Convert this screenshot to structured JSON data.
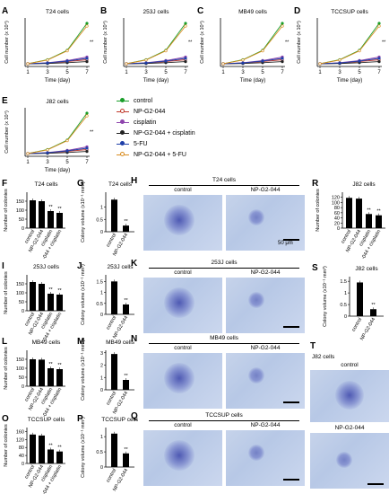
{
  "growth_panels": [
    {
      "letter": "A",
      "title": "T24 cells"
    },
    {
      "letter": "B",
      "title": "253J cells"
    },
    {
      "letter": "C",
      "title": "MB49 cells"
    },
    {
      "letter": "D",
      "title": "TCCSUP cells"
    },
    {
      "letter": "E",
      "title": "J82 cells"
    }
  ],
  "growth_axes": {
    "ylabel": "Cell number (x 10⁴)",
    "xlabel": "Time (day)",
    "xticks": [
      "1",
      "3",
      "5",
      "7"
    ]
  },
  "legend": [
    "control",
    "NP-G2-044",
    "cisplatin",
    "NP-G2-044 + cisplatin",
    "5-FU",
    "NP-G2-044 + 5-FU"
  ],
  "legend_colors": [
    "#1a9e2a",
    "#c0392b",
    "#8e44ad",
    "#222222",
    "#1f3fa8",
    "#d98c1f"
  ],
  "colony_number_panels": [
    {
      "letter": "F",
      "title": "T24 cells"
    },
    {
      "letter": "I",
      "title": "253J cells"
    },
    {
      "letter": "L",
      "title": "MB49 cells"
    },
    {
      "letter": "O",
      "title": "TCCSUP cells"
    },
    {
      "letter": "R",
      "title": "J82 cells"
    }
  ],
  "colony_number_ylabel": "Number of colonies",
  "colony_number_xlabels": [
    "control",
    "NP-G2-044",
    "cisplatin",
    "NP-G2-044 + cisplatin"
  ],
  "colony_volume_panels": [
    {
      "letter": "G",
      "title": "T24 cells"
    },
    {
      "letter": "J",
      "title": "253J cells"
    },
    {
      "letter": "M",
      "title": "MB49 cells"
    },
    {
      "letter": "P",
      "title": "TCCSUP cells"
    },
    {
      "letter": "S",
      "title": "J82 cells"
    }
  ],
  "colony_volume_ylabel": "Colony volume (x10⁻¹ mm³)",
  "colony_volume_xlabels": [
    "control",
    "NP-G2-044"
  ],
  "image_panels": [
    {
      "letter": "H",
      "title": "T24 cells",
      "left": "control",
      "right": "NP-G2-044",
      "scale": "50 μm"
    },
    {
      "letter": "K",
      "title": "253J cells",
      "left": "control",
      "right": "NP-G2-044"
    },
    {
      "letter": "N",
      "title": "MB49 cells",
      "left": "control",
      "right": "NP-G2-044"
    },
    {
      "letter": "Q",
      "title": "TCCSUP cells",
      "left": "control",
      "right": "NP-G2-044"
    }
  ],
  "image_T": {
    "letter": "T",
    "title": "J82 cells",
    "top": "control",
    "bottom": "NP-G2-044"
  },
  "significance": "**",
  "chart_data": [
    {
      "type": "line",
      "panel": "A",
      "title": "T24 cells",
      "xlabel": "Time (day)",
      "ylabel": "Cell number (x 10⁴)",
      "x": [
        1,
        3,
        5,
        7
      ],
      "series": [
        {
          "name": "control",
          "values": [
            10,
            25,
            60,
            160
          ]
        },
        {
          "name": "NP-G2-044",
          "values": [
            10,
            12,
            18,
            25
          ]
        },
        {
          "name": "cisplatin",
          "values": [
            10,
            14,
            22,
            35
          ]
        },
        {
          "name": "NP-G2-044 + cisplatin",
          "values": [
            10,
            11,
            14,
            18
          ]
        },
        {
          "name": "5-FU",
          "values": [
            10,
            13,
            20,
            30
          ]
        },
        {
          "name": "NP-G2-044 + 5-FU",
          "values": [
            10,
            24,
            58,
            150
          ]
        }
      ]
    },
    {
      "type": "line",
      "panel": "B",
      "title": "253J cells",
      "xlabel": "Time (day)",
      "ylabel": "Cell number (x 10⁴)",
      "x": [
        1,
        3,
        5,
        7
      ],
      "series": [
        {
          "name": "control",
          "values": [
            10,
            25,
            60,
            160
          ]
        },
        {
          "name": "NP-G2-044",
          "values": [
            10,
            12,
            18,
            25
          ]
        },
        {
          "name": "cisplatin",
          "values": [
            10,
            14,
            22,
            35
          ]
        },
        {
          "name": "NP-G2-044 + cisplatin",
          "values": [
            10,
            11,
            14,
            18
          ]
        },
        {
          "name": "5-FU",
          "values": [
            10,
            13,
            20,
            30
          ]
        },
        {
          "name": "NP-G2-044 + 5-FU",
          "values": [
            10,
            24,
            58,
            150
          ]
        }
      ]
    },
    {
      "type": "line",
      "panel": "C",
      "title": "MB49 cells",
      "xlabel": "Time (day)",
      "ylabel": "Cell number (x 10⁴)",
      "x": [
        1,
        3,
        5,
        7
      ],
      "series": [
        {
          "name": "control",
          "values": [
            10,
            25,
            60,
            160
          ]
        },
        {
          "name": "NP-G2-044",
          "values": [
            10,
            12,
            18,
            25
          ]
        },
        {
          "name": "cisplatin",
          "values": [
            10,
            14,
            22,
            35
          ]
        },
        {
          "name": "NP-G2-044 + cisplatin",
          "values": [
            10,
            11,
            14,
            18
          ]
        },
        {
          "name": "5-FU",
          "values": [
            10,
            13,
            20,
            30
          ]
        },
        {
          "name": "NP-G2-044 + 5-FU",
          "values": [
            10,
            24,
            58,
            150
          ]
        }
      ]
    },
    {
      "type": "line",
      "panel": "D",
      "title": "TCCSUP cells",
      "xlabel": "Time (day)",
      "ylabel": "Cell number (x 10⁴)",
      "x": [
        1,
        3,
        5,
        7
      ],
      "series": [
        {
          "name": "control",
          "values": [
            10,
            25,
            60,
            160
          ]
        },
        {
          "name": "NP-G2-044",
          "values": [
            10,
            12,
            18,
            25
          ]
        },
        {
          "name": "cisplatin",
          "values": [
            10,
            14,
            22,
            35
          ]
        },
        {
          "name": "NP-G2-044 + cisplatin",
          "values": [
            10,
            11,
            14,
            18
          ]
        },
        {
          "name": "5-FU",
          "values": [
            10,
            13,
            20,
            30
          ]
        },
        {
          "name": "NP-G2-044 + 5-FU",
          "values": [
            10,
            24,
            58,
            150
          ]
        }
      ]
    },
    {
      "type": "line",
      "panel": "E",
      "title": "J82 cells",
      "xlabel": "Time (day)",
      "ylabel": "Cell number (x 10⁴)",
      "x": [
        1,
        3,
        5,
        7
      ],
      "series": [
        {
          "name": "control",
          "values": [
            10,
            25,
            60,
            160
          ]
        },
        {
          "name": "NP-G2-044",
          "values": [
            10,
            12,
            18,
            25
          ]
        },
        {
          "name": "cisplatin",
          "values": [
            10,
            14,
            22,
            35
          ]
        },
        {
          "name": "NP-G2-044 + cisplatin",
          "values": [
            10,
            11,
            14,
            18
          ]
        },
        {
          "name": "5-FU",
          "values": [
            10,
            13,
            20,
            30
          ]
        },
        {
          "name": "NP-G2-044 + 5-FU",
          "values": [
            10,
            24,
            58,
            150
          ]
        }
      ]
    },
    {
      "type": "bar",
      "panel": "F",
      "title": "T24 cells",
      "ylabel": "Number of colonies",
      "categories": [
        "control",
        "NP-G2-044",
        "cisplatin",
        "NP-G2-044 + cisplatin"
      ],
      "values": [
        155,
        150,
        95,
        85
      ],
      "ylim": [
        0,
        200
      ],
      "yticks": [
        0,
        50,
        100,
        150
      ]
    },
    {
      "type": "bar",
      "panel": "I",
      "title": "253J cells",
      "ylabel": "Number of colonies",
      "categories": [
        "control",
        "NP-G2-044",
        "cisplatin",
        "NP-G2-044 + cisplatin"
      ],
      "values": [
        160,
        150,
        95,
        90
      ],
      "ylim": [
        0,
        200
      ],
      "yticks": [
        0,
        50,
        100,
        150
      ]
    },
    {
      "type": "bar",
      "panel": "L",
      "title": "MB49 cells",
      "ylabel": "Number of colonies",
      "categories": [
        "control",
        "NP-G2-044",
        "cisplatin",
        "NP-G2-044 + cisplatin"
      ],
      "values": [
        150,
        148,
        100,
        95
      ],
      "ylim": [
        0,
        200
      ],
      "yticks": [
        0,
        50,
        100,
        150
      ]
    },
    {
      "type": "bar",
      "panel": "O",
      "title": "TCCSUP cells",
      "ylabel": "Number of colonies",
      "categories": [
        "control",
        "NP-G2-044",
        "cisplatin",
        "NP-G2-044 + cisplatin"
      ],
      "values": [
        145,
        140,
        70,
        60
      ],
      "ylim": [
        0,
        180
      ],
      "yticks": [
        0,
        40,
        80,
        120,
        160
      ]
    },
    {
      "type": "bar",
      "panel": "R",
      "title": "J82 cells",
      "ylabel": "Number of colonies",
      "categories": [
        "control",
        "NP-G2-044",
        "cisplatin",
        "NP-G2-044 + cisplatin"
      ],
      "values": [
        118,
        115,
        55,
        50
      ],
      "ylim": [
        0,
        140
      ],
      "yticks": [
        0,
        20,
        40,
        60,
        80,
        100,
        120
      ]
    },
    {
      "type": "bar",
      "panel": "G",
      "title": "T24 cells",
      "ylabel": "Colony volume (x10⁻¹ mm³)",
      "categories": [
        "control",
        "NP-G2-044"
      ],
      "values": [
        1.3,
        0.25
      ],
      "ylim": [
        0,
        1.6
      ],
      "yticks": [
        0,
        0.5,
        1.0
      ]
    },
    {
      "type": "bar",
      "panel": "J",
      "title": "253J cells",
      "ylabel": "Colony volume (x10⁻¹ mm³)",
      "categories": [
        "control",
        "NP-G2-044"
      ],
      "values": [
        1.5,
        0.45
      ],
      "ylim": [
        0,
        1.8
      ],
      "yticks": [
        0,
        0.5,
        1.0,
        1.5
      ]
    },
    {
      "type": "bar",
      "panel": "M",
      "title": "MB49 cells",
      "ylabel": "Colony volume (x10⁻¹ mm³)",
      "categories": [
        "control",
        "NP-G2-044"
      ],
      "values": [
        2.9,
        0.8
      ],
      "ylim": [
        0,
        3.2
      ],
      "yticks": [
        0,
        1,
        2,
        3
      ]
    },
    {
      "type": "bar",
      "panel": "P",
      "title": "TCCSUP cells",
      "ylabel": "Colony volume (x10⁻¹ mm³)",
      "categories": [
        "control",
        "NP-G2-044"
      ],
      "values": [
        1.1,
        0.45
      ],
      "ylim": [
        0,
        1.3
      ],
      "yticks": [
        0,
        0.5,
        1.0
      ]
    },
    {
      "type": "bar",
      "panel": "S",
      "title": "J82 cells",
      "ylabel": "Colony volume (x10⁻¹ mm³)",
      "categories": [
        "control",
        "NP-G2-044"
      ],
      "values": [
        1.45,
        0.3
      ],
      "ylim": [
        0,
        1.7
      ],
      "yticks": [
        0,
        0.5,
        1.0,
        1.5
      ]
    }
  ]
}
